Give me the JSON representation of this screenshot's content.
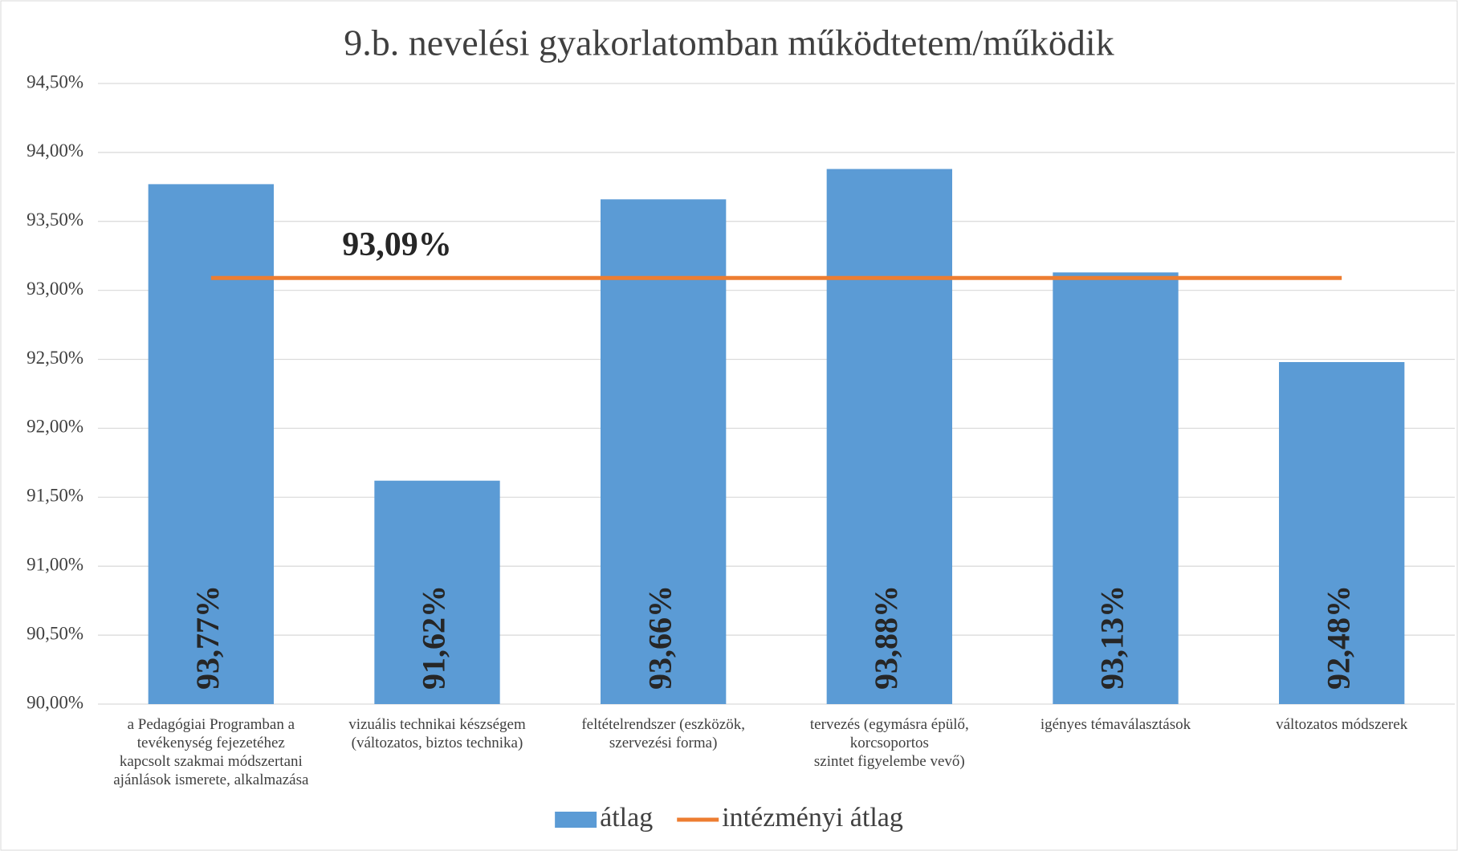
{
  "chart_data": {
    "type": "bar",
    "title": "9.b. nevelési gyakorlatomban működtetem/működik",
    "categories": [
      "a Pedagógiai Programban a\ntevékenység fejezetéhez\nkapcsolt szakmai módszertani\najánlások ismerete, alkalmazása",
      "vizuális technikai készségem\n(változatos, biztos technika)",
      "feltételrendszer (eszközök,\nszervezési forma)",
      "tervezés (egymásra épülő,\nkorcsoportos\nszintet figyelembe vevő)",
      "igényes témaválasztások",
      "változatos módszerek"
    ],
    "series": [
      {
        "name": "átlag",
        "type": "bar",
        "color": "#5b9bd5",
        "values": [
          93.77,
          91.62,
          93.66,
          93.88,
          93.13,
          92.48
        ],
        "value_labels": [
          "93,77%",
          "91,62%",
          "93,66%",
          "93,88%",
          "93,13%",
          "92,48%"
        ]
      },
      {
        "name": "intézményi átlag",
        "type": "line",
        "color": "#ed7d31",
        "values": [
          93.09,
          93.09,
          93.09,
          93.09,
          93.09,
          93.09
        ]
      }
    ],
    "annotation": "93,09%",
    "ylim": [
      90,
      94.5
    ],
    "yticks": [
      {
        "value": 90,
        "label": "90,00%"
      },
      {
        "value": 90.5,
        "label": "90,50%"
      },
      {
        "value": 91,
        "label": "91,00%"
      },
      {
        "value": 91.5,
        "label": "91,50%"
      },
      {
        "value": 92,
        "label": "92,00%"
      },
      {
        "value": 92.5,
        "label": "92,50%"
      },
      {
        "value": 93,
        "label": "93,00%"
      },
      {
        "value": 93.5,
        "label": "93,50%"
      },
      {
        "value": 94,
        "label": "94,00%"
      },
      {
        "value": 94.5,
        "label": "94,50%"
      }
    ],
    "grid": true,
    "legend": "bottom"
  }
}
